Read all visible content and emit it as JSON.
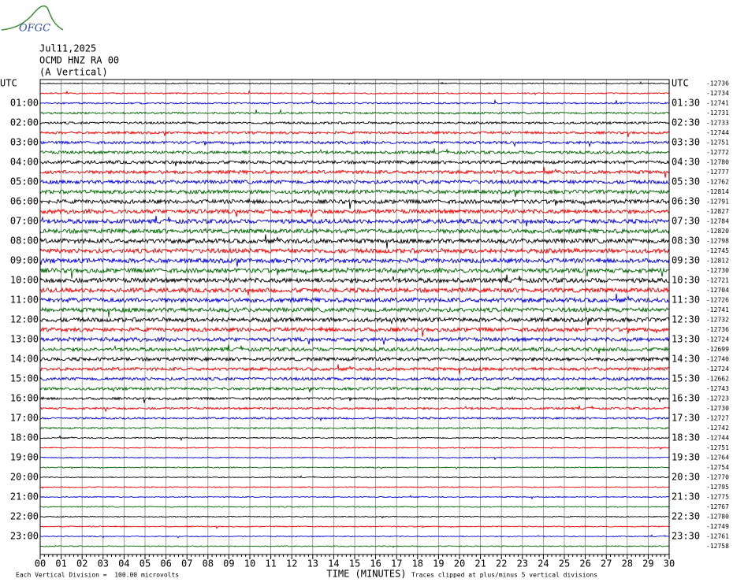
{
  "header": {
    "logo": "OFGC",
    "date": "Jul11,2025",
    "station": "OCMD HNZ RA 00",
    "component": "(A Vertical)"
  },
  "plot": {
    "left_labels": [
      "UTC",
      "01:00",
      "02:00",
      "03:00",
      "04:00",
      "05:00",
      "06:00",
      "07:00",
      "08:00",
      "09:00",
      "10:00",
      "11:00",
      "12:00",
      "13:00",
      "14:00",
      "15:00",
      "16:00",
      "17:00",
      "18:00",
      "19:00",
      "20:00",
      "21:00",
      "22:00",
      "23:00"
    ],
    "right_labels": [
      "UTC",
      "01:30",
      "02:30",
      "03:30",
      "04:30",
      "05:30",
      "06:30",
      "07:30",
      "08:30",
      "09:30",
      "10:30",
      "11:30",
      "12:30",
      "13:30",
      "14:30",
      "15:30",
      "16:30",
      "17:30",
      "18:30",
      "19:30",
      "20:30",
      "21:30",
      "22:30",
      "23:30"
    ],
    "trace_offsets": [
      -12736,
      -12734,
      -12741,
      -12731,
      -12733,
      -12744,
      -12751,
      -12772,
      -12780,
      -12777,
      -12762,
      -12814,
      -12791,
      -12827,
      -12784,
      -12820,
      -12798,
      -12745,
      -12812,
      -12730,
      -12721,
      -12704,
      -12726,
      -12741,
      -12732,
      -12736,
      -12724,
      -12699,
      -12740,
      -12724,
      -12662,
      -12743,
      -12723,
      -12730,
      -12727,
      -12742,
      -12744,
      -12751,
      -12764,
      -12754,
      -12770,
      -12795,
      -12775,
      -12767,
      -12780,
      -12749,
      -12761,
      -12758
    ],
    "x_labels": [
      "00",
      "01",
      "02",
      "03",
      "04",
      "05",
      "06",
      "07",
      "08",
      "09",
      "10",
      "11",
      "12",
      "13",
      "14",
      "15",
      "16",
      "17",
      "18",
      "19",
      "20",
      "21",
      "22",
      "23",
      "24",
      "25",
      "26",
      "27",
      "28",
      "29",
      "30"
    ],
    "x_axis_title": "TIME (MINUTES)",
    "footer_left": "Each Vertical Division =  100.00 microvolts",
    "footer_right": "Traces clipped at plus/minus 5 vertical divisions"
  }
}
